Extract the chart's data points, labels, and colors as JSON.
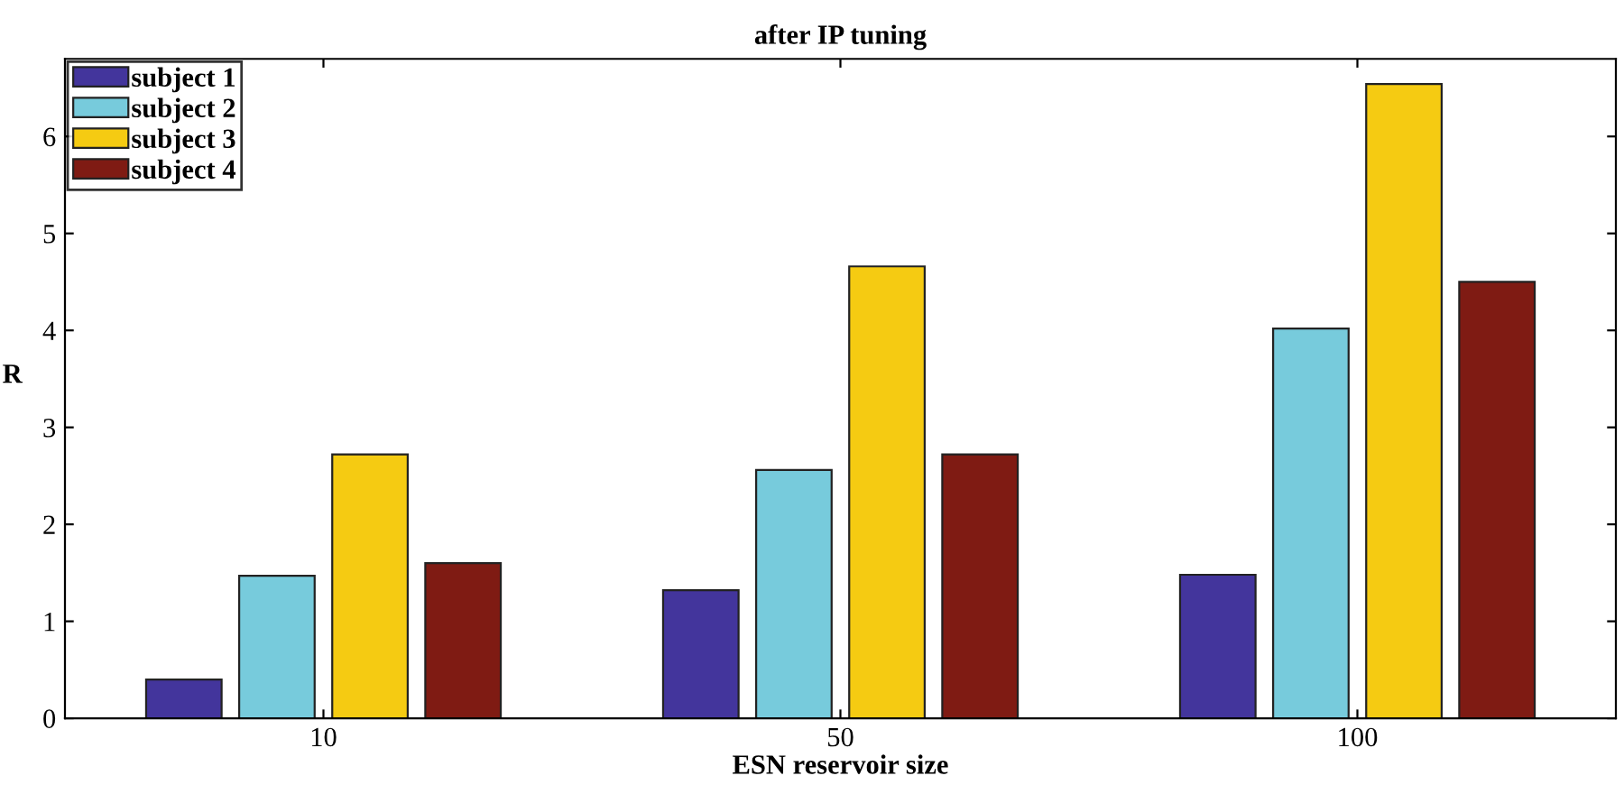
{
  "chart_data": {
    "type": "bar",
    "title": "after IP tuning",
    "xlabel": "ESN reservoir size",
    "ylabel": "R",
    "categories": [
      "10",
      "50",
      "100"
    ],
    "series": [
      {
        "name": "subject 1",
        "color": "#43359c",
        "values": [
          0.4,
          1.32,
          1.48
        ]
      },
      {
        "name": "subject 2",
        "color": "#77cbdc",
        "values": [
          1.47,
          2.56,
          4.02
        ]
      },
      {
        "name": "subject 3",
        "color": "#f5cb12",
        "values": [
          2.72,
          4.66,
          6.54
        ]
      },
      {
        "name": "subject 4",
        "color": "#7f1b13",
        "values": [
          1.6,
          2.72,
          4.5
        ]
      }
    ],
    "ylim": [
      0,
      6.8
    ],
    "yticks": [
      0,
      1,
      2,
      3,
      4,
      5,
      6
    ],
    "grid": false,
    "legend": "top left"
  }
}
